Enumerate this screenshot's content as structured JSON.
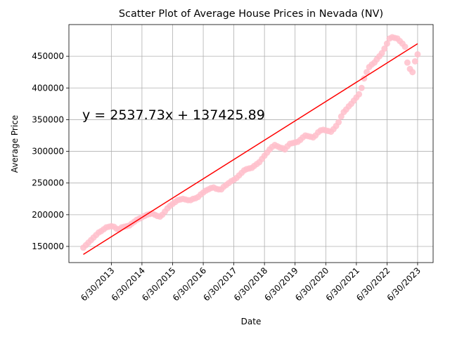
{
  "chart_data": {
    "type": "scatter",
    "title": "Scatter Plot of Average House Prices in Nevada (NV)",
    "x_label": "Date",
    "y_label": "Average Price",
    "x": [
      "7/31/2012",
      "8/31/2012",
      "9/30/2012",
      "10/31/2012",
      "11/30/2012",
      "12/31/2012",
      "1/31/2013",
      "2/28/2013",
      "3/31/2013",
      "4/30/2013",
      "5/31/2013",
      "6/30/2013",
      "7/31/2013",
      "8/31/2013",
      "9/30/2013",
      "10/31/2013",
      "11/30/2013",
      "12/31/2013",
      "1/31/2014",
      "2/28/2014",
      "3/31/2014",
      "4/30/2014",
      "5/31/2014",
      "6/30/2014",
      "7/31/2014",
      "8/31/2014",
      "9/30/2014",
      "10/31/2014",
      "11/30/2014",
      "12/31/2014",
      "1/31/2015",
      "2/28/2015",
      "3/31/2015",
      "4/30/2015",
      "5/31/2015",
      "6/30/2015",
      "7/31/2015",
      "8/31/2015",
      "9/30/2015",
      "10/31/2015",
      "11/30/2015",
      "12/31/2015",
      "1/31/2016",
      "2/29/2016",
      "3/31/2016",
      "4/30/2016",
      "5/31/2016",
      "6/30/2016",
      "7/31/2016",
      "8/31/2016",
      "9/30/2016",
      "10/31/2016",
      "11/30/2016",
      "12/31/2016",
      "1/31/2017",
      "2/28/2017",
      "3/31/2017",
      "4/30/2017",
      "5/31/2017",
      "6/30/2017",
      "7/31/2017",
      "8/31/2017",
      "9/30/2017",
      "10/31/2017",
      "11/30/2017",
      "12/31/2017",
      "1/31/2018",
      "2/28/2018",
      "3/31/2018",
      "4/30/2018",
      "5/31/2018",
      "6/30/2018",
      "7/31/2018",
      "8/31/2018",
      "9/30/2018",
      "10/31/2018",
      "11/30/2018",
      "12/31/2018",
      "1/31/2019",
      "2/28/2019",
      "3/31/2019",
      "4/30/2019",
      "5/31/2019",
      "6/30/2019",
      "7/31/2019",
      "8/31/2019",
      "9/30/2019",
      "10/31/2019",
      "11/30/2019",
      "12/31/2019",
      "1/31/2020",
      "2/29/2020",
      "3/31/2020",
      "4/30/2020",
      "5/31/2020",
      "6/30/2020",
      "7/31/2020",
      "8/31/2020",
      "9/30/2020",
      "10/31/2020",
      "11/30/2020",
      "12/31/2020",
      "1/31/2021",
      "2/28/2021",
      "3/31/2021",
      "4/30/2021",
      "5/31/2021",
      "6/30/2021",
      "7/31/2021",
      "8/31/2021",
      "9/30/2021",
      "10/31/2021",
      "11/30/2021",
      "12/31/2021",
      "1/31/2022",
      "2/28/2022",
      "3/31/2022",
      "4/30/2022",
      "5/31/2022",
      "6/30/2022",
      "7/31/2022",
      "8/31/2022",
      "9/30/2022",
      "10/31/2022",
      "11/30/2022",
      "12/31/2022",
      "1/31/2023",
      "2/28/2023",
      "3/31/2023",
      "4/30/2023",
      "5/31/2023",
      "6/30/2023"
    ],
    "series": [
      {
        "color": "#ffc0cb",
        "values": [
          148000,
          152000,
          156000,
          160000,
          164000,
          168000,
          172000,
          174000,
          177000,
          180000,
          181000,
          182000,
          181000,
          178000,
          177000,
          180000,
          181000,
          182000,
          183000,
          186000,
          189000,
          192000,
          194000,
          196000,
          198000,
          200000,
          201000,
          202000,
          200000,
          198000,
          197000,
          200000,
          205000,
          210000,
          214000,
          217000,
          220000,
          223000,
          224000,
          225000,
          224000,
          223000,
          223000,
          225000,
          226000,
          228000,
          232000,
          235000,
          238000,
          240000,
          242000,
          243000,
          241000,
          240000,
          240000,
          244000,
          247000,
          250000,
          253000,
          255000,
          258000,
          262000,
          266000,
          270000,
          272000,
          273000,
          274000,
          277000,
          280000,
          283000,
          288000,
          293000,
          298000,
          303000,
          307000,
          310000,
          308000,
          306000,
          305000,
          303000,
          308000,
          312000,
          313000,
          314000,
          315000,
          318000,
          322000,
          325000,
          324000,
          323000,
          322000,
          325000,
          330000,
          333000,
          334000,
          333000,
          332000,
          331000,
          335000,
          340000,
          346000,
          355000,
          362000,
          366000,
          371000,
          375000,
          380000,
          385000,
          390000,
          400000,
          415000,
          425000,
          433000,
          437000,
          440000,
          445000,
          450000,
          455000,
          462000,
          470000,
          478000,
          480000,
          479000,
          478000,
          474000,
          470000,
          465000,
          440000,
          430000,
          425000,
          442000,
          453000
        ]
      }
    ],
    "regression": {
      "slope": 2537.73,
      "intercept": 137425.89,
      "color": "#ff0000",
      "label": "y = 2537.73x + 137425.89"
    },
    "xlim": [
      "2/10/2012",
      "1/1/2024"
    ],
    "xticks": [
      "6/30/2013",
      "6/30/2014",
      "6/30/2015",
      "6/30/2016",
      "6/30/2017",
      "6/30/2018",
      "6/30/2019",
      "6/30/2020",
      "6/30/2021",
      "6/30/2022",
      "6/30/2023"
    ],
    "ylim": [
      124500,
      500000
    ],
    "yticks": [
      150000,
      200000,
      250000,
      300000,
      350000,
      400000,
      450000
    ],
    "grid": true
  }
}
